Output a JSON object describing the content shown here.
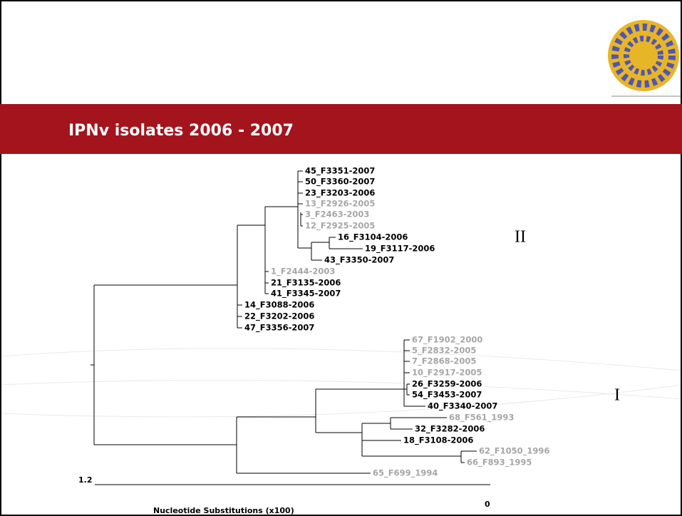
{
  "header": {
    "title": "IPNv isolates 2006 - 2007"
  },
  "tree": {
    "leaves": [
      {
        "label": "45_F3351-2007",
        "color": "#000000"
      },
      {
        "label": "50_F3360-2007",
        "color": "#000000"
      },
      {
        "label": "23_F3203-2006",
        "color": "#000000"
      },
      {
        "label": "13_F2926-2005",
        "color": "#a6a6a6"
      },
      {
        "label": "3_F2463-2003",
        "color": "#a6a6a6"
      },
      {
        "label": "12_F2925-2005",
        "color": "#a6a6a6"
      },
      {
        "label": "16_F3104-2006",
        "color": "#000000"
      },
      {
        "label": "19_F3117-2006",
        "color": "#000000"
      },
      {
        "label": "43_F3350-2007",
        "color": "#000000"
      },
      {
        "label": "1_F2444-2003",
        "color": "#a6a6a6"
      },
      {
        "label": "21_F3135-2006",
        "color": "#000000"
      },
      {
        "label": "41_F3345-2007",
        "color": "#000000"
      },
      {
        "label": "14_F3088-2006",
        "color": "#000000"
      },
      {
        "label": "22_F3202-2006",
        "color": "#000000"
      },
      {
        "label": "47_F3356-2007",
        "color": "#000000"
      },
      {
        "label": "67_F1902_2000",
        "color": "#a6a6a6"
      },
      {
        "label": "5_F2832-2005",
        "color": "#a6a6a6"
      },
      {
        "label": "7_F2868-2005",
        "color": "#a6a6a6"
      },
      {
        "label": "10_F2917-2005",
        "color": "#a6a6a6"
      },
      {
        "label": "26_F3259-2006",
        "color": "#000000"
      },
      {
        "label": "54_F3453-2007",
        "color": "#000000"
      },
      {
        "label": "40_F3340-2007",
        "color": "#000000"
      },
      {
        "label": "68_F561_1993",
        "color": "#a6a6a6"
      },
      {
        "label": "32_F3282-2006",
        "color": "#000000"
      },
      {
        "label": "18_F3108-2006",
        "color": "#000000"
      },
      {
        "label": "62_F1050_1996",
        "color": "#a6a6a6"
      },
      {
        "label": "66_F893_1995",
        "color": "#a6a6a6"
      },
      {
        "label": "65_F699_1994",
        "color": "#a6a6a6"
      }
    ],
    "clades": [
      "II",
      "I"
    ],
    "scale": {
      "start": "1.2",
      "end": "0",
      "label": "Nucleotide Substitutions (x100)"
    }
  }
}
